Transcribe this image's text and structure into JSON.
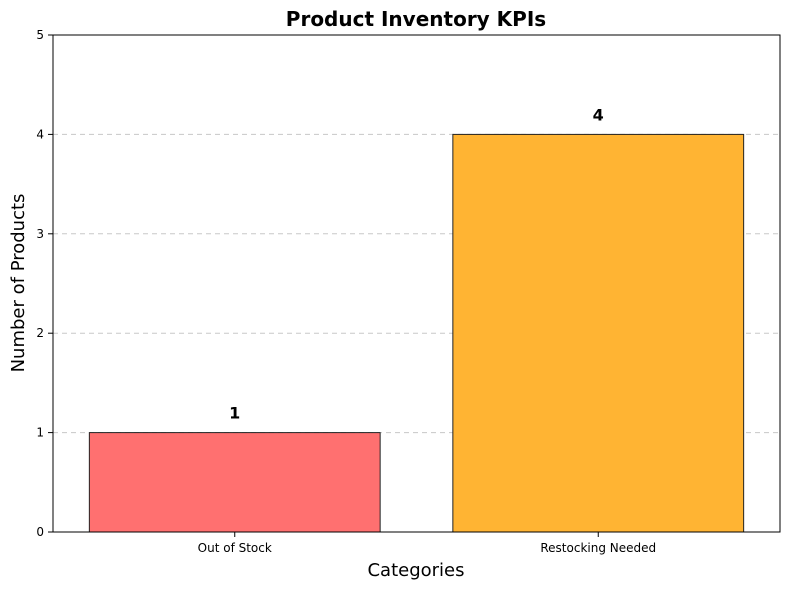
{
  "chart_data": {
    "type": "bar",
    "title": "Product Inventory KPIs",
    "xlabel": "Categories",
    "ylabel": "Number of Products",
    "categories": [
      "Out of Stock",
      "Restocking Needed"
    ],
    "values": [
      1,
      4
    ],
    "data_labels": [
      "1",
      "4"
    ],
    "colors": [
      "#ff7070",
      "#ffb433"
    ],
    "ylim": [
      0,
      5
    ],
    "yticks": [
      0,
      1,
      2,
      3,
      4,
      5
    ],
    "ytick_labels": [
      "0",
      "1",
      "2",
      "3",
      "4",
      "5"
    ],
    "grid": "y-dashed"
  }
}
